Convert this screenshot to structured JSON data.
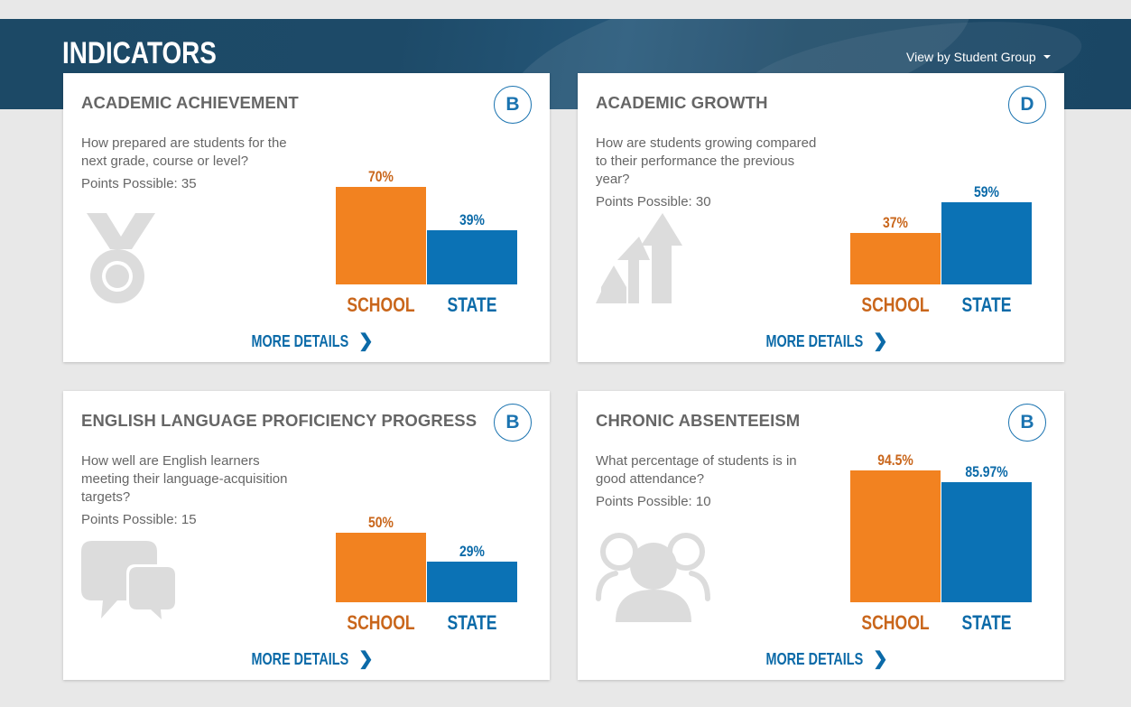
{
  "header": {
    "title": "INDICATORS",
    "group_select": "View by Student Group"
  },
  "labels": {
    "school": "SCHOOL",
    "state": "STATE",
    "more_details": "MORE DETAILS",
    "chevron": "❯"
  },
  "cards": [
    {
      "title": "ACADEMIC ACHIEVEMENT",
      "grade": "B",
      "description": "How prepared are students for the next grade, course or level?",
      "points": "Points Possible: 35",
      "icon": "medal-icon"
    },
    {
      "title": "ACADEMIC GROWTH",
      "grade": "D",
      "description": "How are students growing compared to their performance the previous year?",
      "points": "Points Possible: 30",
      "icon": "growth-arrows-icon"
    },
    {
      "title": "ENGLISH LANGUAGE PROFICIENCY PROGRESS",
      "grade": "B",
      "description": "How well are English learners meeting their language-acquisition targets?",
      "points": "Points Possible: 15",
      "icon": "speech-bubbles-icon"
    },
    {
      "title": "CHRONIC ABSENTEEISM",
      "grade": "B",
      "description": "What percentage of students is in good attendance?",
      "points": "Points Possible: 10",
      "icon": "people-group-icon"
    }
  ],
  "chart_data": [
    {
      "type": "bar",
      "categories": [
        "SCHOOL",
        "STATE"
      ],
      "values": [
        70,
        39
      ],
      "data_labels": [
        "70%",
        "39%"
      ],
      "ylim": [
        0,
        100
      ],
      "colors": [
        "#f28220",
        "#0b72b5"
      ]
    },
    {
      "type": "bar",
      "categories": [
        "SCHOOL",
        "STATE"
      ],
      "values": [
        37,
        59
      ],
      "data_labels": [
        "37%",
        "59%"
      ],
      "ylim": [
        0,
        100
      ],
      "colors": [
        "#f28220",
        "#0b72b5"
      ]
    },
    {
      "type": "bar",
      "categories": [
        "SCHOOL",
        "STATE"
      ],
      "values": [
        50,
        29
      ],
      "data_labels": [
        "50%",
        "29%"
      ],
      "ylim": [
        0,
        100
      ],
      "colors": [
        "#f28220",
        "#0b72b5"
      ]
    },
    {
      "type": "bar",
      "categories": [
        "SCHOOL",
        "STATE"
      ],
      "values": [
        94.5,
        85.97
      ],
      "data_labels": [
        "94.5%",
        "85.97%"
      ],
      "ylim": [
        0,
        100
      ],
      "colors": [
        "#f28220",
        "#0b72b5"
      ]
    }
  ]
}
